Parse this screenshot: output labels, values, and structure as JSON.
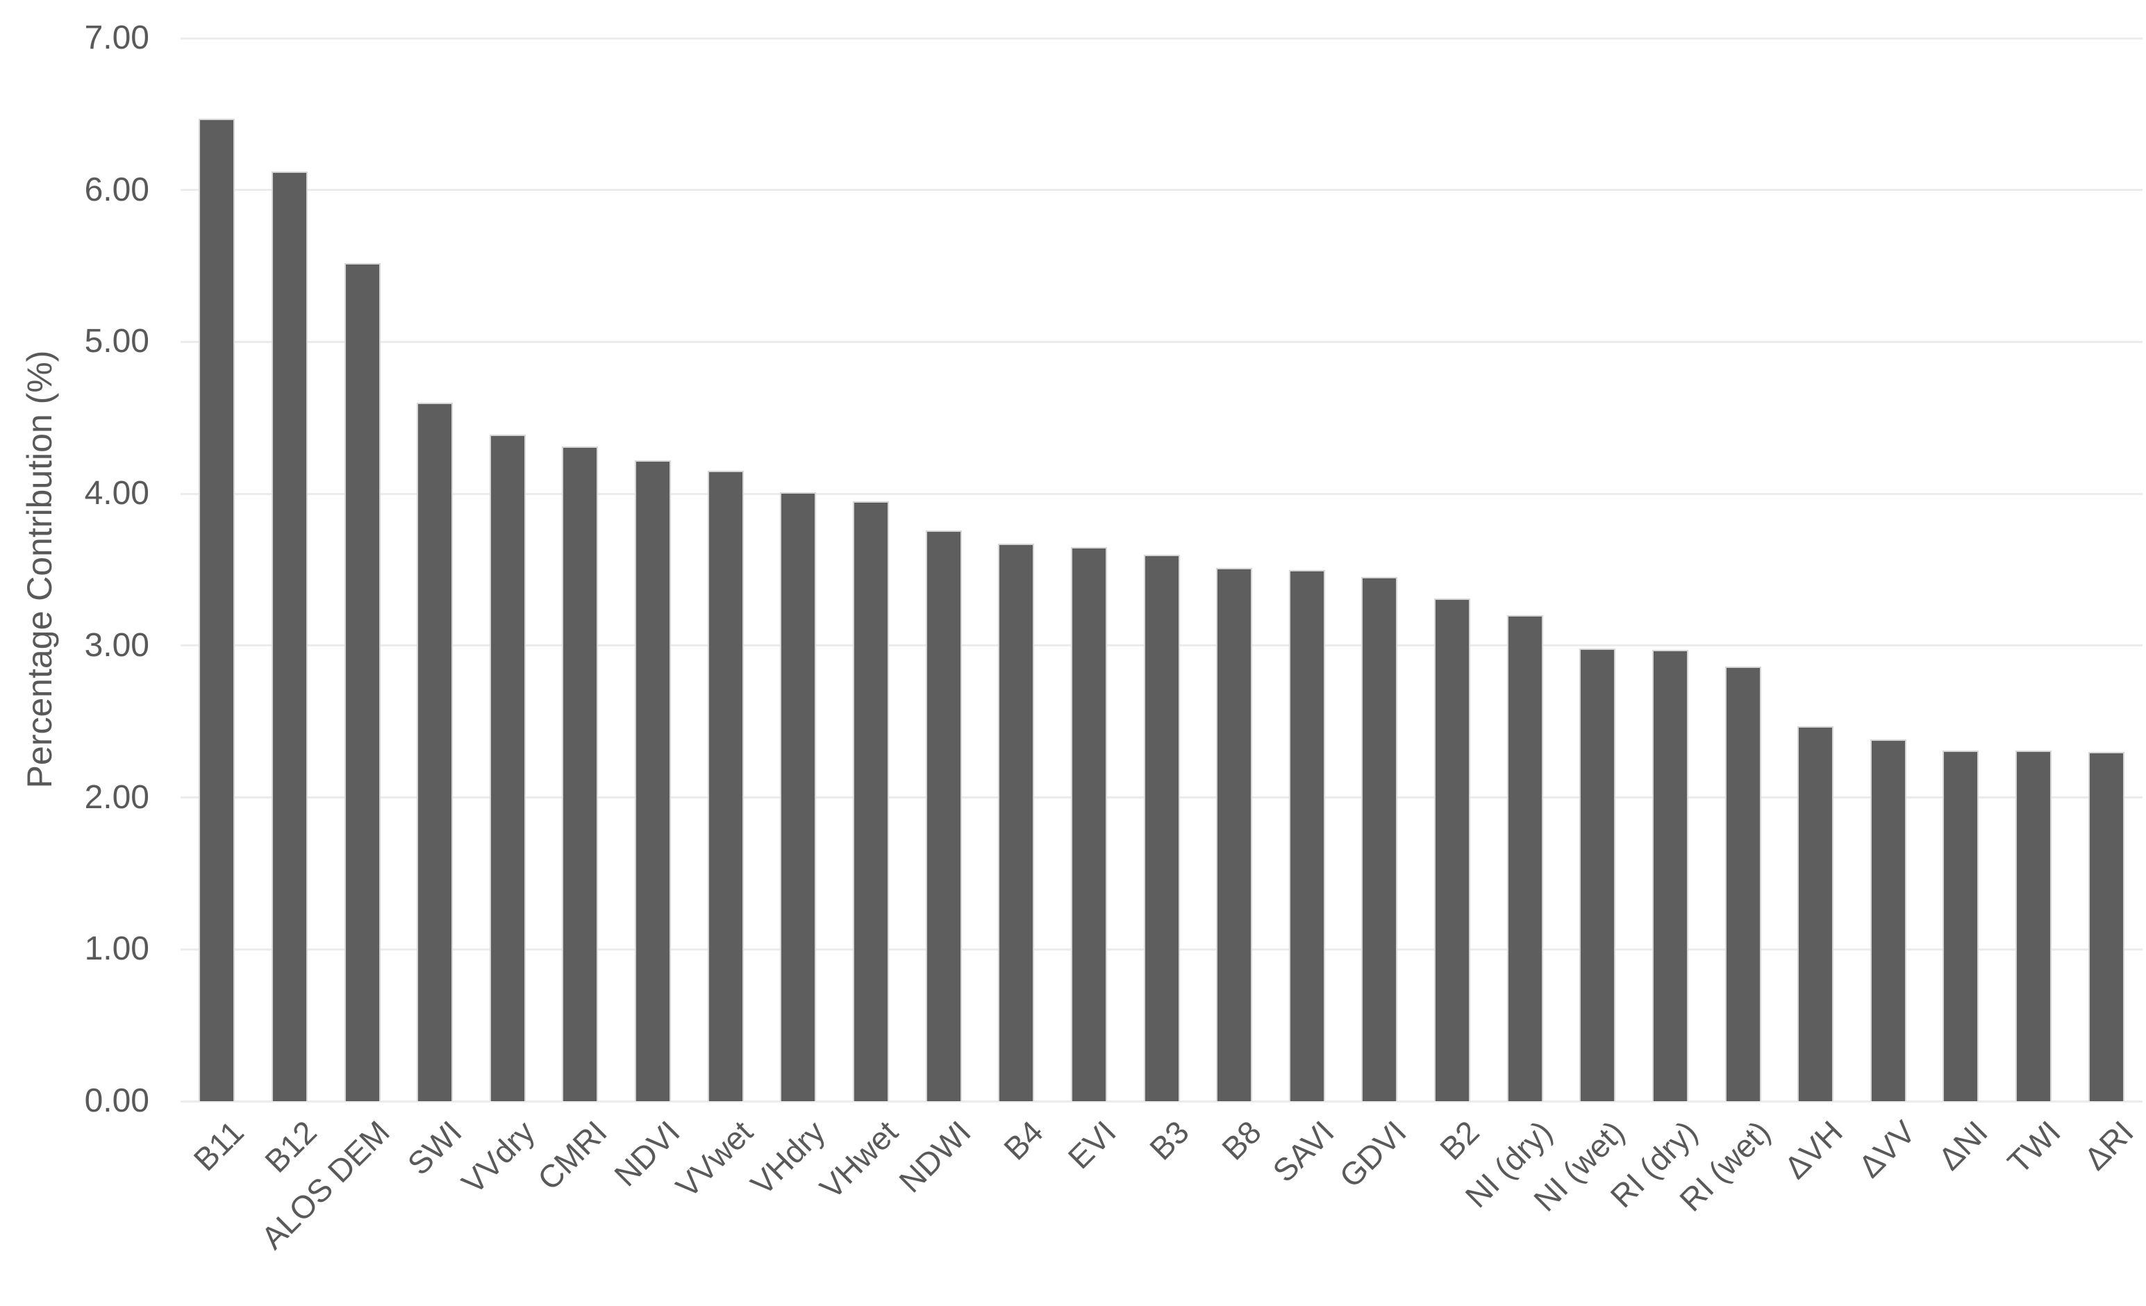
{
  "chart_data": {
    "type": "bar",
    "title": "",
    "xlabel": "",
    "ylabel": "Percentage Contribution (%)",
    "ylim": [
      0,
      7
    ],
    "ytick_step": 1,
    "ytick_decimals": 2,
    "grid": true,
    "legend": false,
    "categories": [
      "B11",
      "B12",
      "ALOS DEM",
      "SWI",
      "VVdry",
      "CMRI",
      "NDVI",
      "VVwet",
      "VHdry",
      "VHwet",
      "NDWI",
      "B4",
      "EVI",
      "B3",
      "B8",
      "SAVI",
      "GDVI",
      "B2",
      "NI (dry)",
      "NI (wet)",
      "RI (dry)",
      "RI (wet)",
      "ΔVH",
      "ΔVV",
      "ΔNI",
      "TWI",
      "ΔRI"
    ],
    "values": [
      6.47,
      6.12,
      5.52,
      4.6,
      4.39,
      4.31,
      4.22,
      4.15,
      4.01,
      3.95,
      3.76,
      3.67,
      3.65,
      3.6,
      3.51,
      3.5,
      3.45,
      3.31,
      3.2,
      2.98,
      2.97,
      2.86,
      2.47,
      2.38,
      2.31,
      2.31,
      2.3
    ],
    "colors": {
      "bar_fill": "#5e5e5e",
      "bar_border": "#d6d6d6",
      "gridline": "#ececec",
      "text": "#595959",
      "background": "#ffffff"
    }
  }
}
